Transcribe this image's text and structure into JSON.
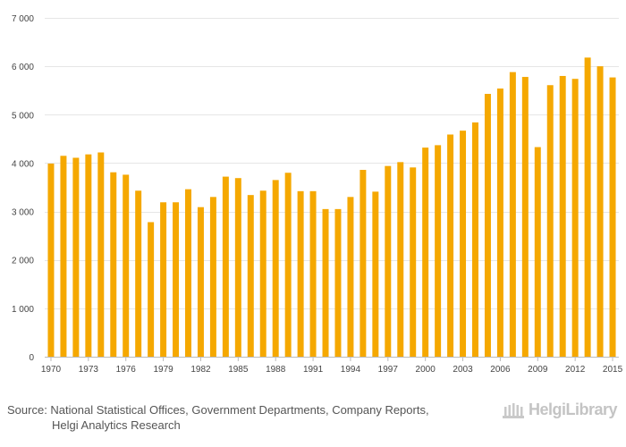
{
  "chart_data": {
    "type": "bar",
    "title": "",
    "xlabel": "",
    "ylabel": "",
    "ylim": [
      0,
      7000
    ],
    "y_ticks": [
      0,
      1000,
      2000,
      3000,
      4000,
      5000,
      6000,
      7000
    ],
    "y_tick_labels": [
      "0",
      "1 000",
      "2 000",
      "3 000",
      "4 000",
      "5 000",
      "6 000",
      "7 000"
    ],
    "x_tick_labels": [
      "1970",
      "1973",
      "1976",
      "1979",
      "1982",
      "1985",
      "1988",
      "1991",
      "1994",
      "1997",
      "2000",
      "2003",
      "2006",
      "2009",
      "2012",
      "2015"
    ],
    "grid": true,
    "bar_color": "#f5a800",
    "categories": [
      1970,
      1971,
      1972,
      1973,
      1974,
      1975,
      1976,
      1977,
      1978,
      1979,
      1980,
      1981,
      1982,
      1983,
      1984,
      1985,
      1986,
      1987,
      1988,
      1989,
      1990,
      1991,
      1992,
      1993,
      1994,
      1995,
      1996,
      1997,
      1998,
      1999,
      2000,
      2001,
      2002,
      2003,
      2004,
      2005,
      2006,
      2007,
      2008,
      2009,
      2010,
      2011,
      2012,
      2013,
      2014,
      2015
    ],
    "values": [
      3990,
      4150,
      4110,
      4180,
      4220,
      3810,
      3760,
      3430,
      2780,
      3190,
      3190,
      3460,
      3090,
      3300,
      3720,
      3690,
      3340,
      3430,
      3650,
      3800,
      3420,
      3420,
      3050,
      3050,
      3300,
      3860,
      3410,
      3940,
      4020,
      3910,
      4320,
      4370,
      4590,
      4670,
      4840,
      5430,
      5540,
      5880,
      5780,
      4330,
      5610,
      5800,
      5740,
      6180,
      6000,
      5770
    ]
  },
  "footer": {
    "source_line1": "Source: National Statistical Offices, Government Departments, Company Reports,",
    "source_line2": "Helgi Analytics Research",
    "logo_text": "HelgiLibrary"
  }
}
